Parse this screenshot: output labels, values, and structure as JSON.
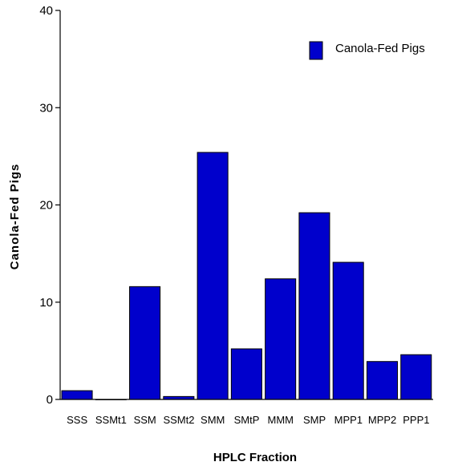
{
  "chart_data": {
    "type": "bar",
    "title": "",
    "xlabel": "HPLC Fraction",
    "ylabel": "Canola-Fed Pigs",
    "ylim": [
      0,
      40
    ],
    "yticks": [
      "0",
      "10",
      "20",
      "30",
      "40"
    ],
    "categories": [
      "SSS",
      "SSMt1",
      "SSM",
      "SSMt2",
      "SMM",
      "SMtP",
      "MMM",
      "SMP",
      "MPP1",
      "MPP2",
      "PPP1"
    ],
    "series": [
      {
        "name": "Canola-Fed Pigs",
        "values": [
          0.9,
          0.0,
          11.6,
          0.3,
          25.4,
          5.2,
          12.4,
          19.2,
          14.1,
          3.9,
          4.6
        ]
      }
    ],
    "bar_color": "#0000cc",
    "legend": {
      "label": "Canola-Fed Pigs",
      "position": "top-right"
    },
    "grid": false
  }
}
